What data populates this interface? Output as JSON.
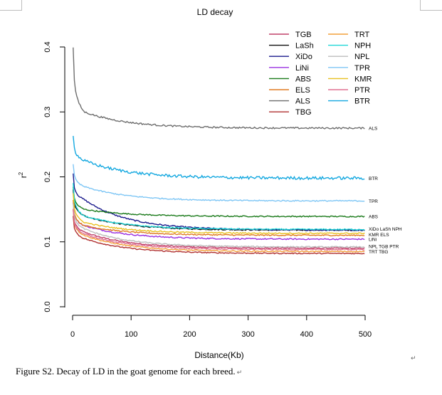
{
  "caption": {
    "text": "Figure S2. Decay of LD in the goat genome for each breed.",
    "mark": "↵"
  },
  "side_mark": "↵",
  "chart_data": {
    "type": "line",
    "title": "LD decay",
    "xlabel": "Distance(Kb)",
    "ylabel": "r²",
    "ylabel_base": "r",
    "ylabel_sup": "2",
    "xlim": [
      0,
      500
    ],
    "ylim": [
      0,
      0.4
    ],
    "xticks": [
      0,
      100,
      200,
      300,
      400,
      500
    ],
    "yticks": [
      0.0,
      0.1,
      0.2,
      0.3,
      0.4
    ],
    "xtick_labels": [
      "0",
      "100",
      "200",
      "300",
      "400",
      "500"
    ],
    "ytick_labels": [
      "0.0",
      "0.1",
      "0.2",
      "0.3",
      "0.4"
    ],
    "legend": {
      "placement": "top-right",
      "columns": [
        [
          "TGB",
          "LaSh",
          "XiDo",
          "LiNi",
          "ABS",
          "ELS",
          "ALS",
          "TBG"
        ],
        [
          "TRT",
          "NPH",
          "NPL",
          "TPR",
          "KMR",
          "PTR",
          "BTR"
        ]
      ]
    },
    "series": [
      {
        "name": "TGB",
        "color": "#c0406a",
        "start": 0.15,
        "knee": 0.115,
        "end": 0.09,
        "noise": 0.0009
      },
      {
        "name": "LaSh",
        "color": "#111111",
        "start": 0.18,
        "knee": 0.14,
        "end": 0.118,
        "noise": 0.0009
      },
      {
        "name": "XiDo",
        "color": "#1a1a8c",
        "start": 0.205,
        "knee": 0.165,
        "end": 0.118,
        "noise": 0.001
      },
      {
        "name": "LiNi",
        "color": "#9a30e0",
        "start": 0.16,
        "knee": 0.125,
        "end": 0.104,
        "noise": 0.001
      },
      {
        "name": "ABS",
        "color": "#1a7a1a",
        "start": 0.185,
        "knee": 0.15,
        "end": 0.139,
        "noise": 0.0009
      },
      {
        "name": "ELS",
        "color": "#e07a20",
        "start": 0.165,
        "knee": 0.125,
        "end": 0.11,
        "noise": 0.0009
      },
      {
        "name": "ALS",
        "color": "#6e6e6e",
        "start": 0.4,
        "knee": 0.3,
        "end": 0.275,
        "noise": 0.0012
      },
      {
        "name": "TBG",
        "color": "#b03030",
        "start": 0.14,
        "knee": 0.105,
        "end": 0.082,
        "noise": 0.0008
      },
      {
        "name": "TRT",
        "color": "#f2a03a",
        "start": 0.15,
        "knee": 0.11,
        "end": 0.085,
        "noise": 0.0008
      },
      {
        "name": "NPH",
        "color": "#20d8d8",
        "start": 0.19,
        "knee": 0.14,
        "end": 0.119,
        "noise": 0.0009
      },
      {
        "name": "NPL",
        "color": "#bcbcbc",
        "start": 0.16,
        "knee": 0.12,
        "end": 0.092,
        "noise": 0.0009
      },
      {
        "name": "TPR",
        "color": "#7ec6f5",
        "start": 0.22,
        "knee": 0.185,
        "end": 0.163,
        "noise": 0.0009
      },
      {
        "name": "KMR",
        "color": "#e8c020",
        "start": 0.175,
        "knee": 0.13,
        "end": 0.113,
        "noise": 0.0009
      },
      {
        "name": "PTR",
        "color": "#e07090",
        "start": 0.15,
        "knee": 0.112,
        "end": 0.088,
        "noise": 0.0009
      },
      {
        "name": "BTR",
        "color": "#14a8e0",
        "start": 0.265,
        "knee": 0.225,
        "end": 0.198,
        "noise": 0.0022
      }
    ],
    "end_labels": [
      {
        "text": "ALS",
        "y": 0.275
      },
      {
        "text": "BTR",
        "y": 0.198
      },
      {
        "text": "TPR",
        "y": 0.163
      },
      {
        "text": "ABS",
        "y": 0.139
      },
      {
        "text": "XiDo  LaSh  NPH",
        "y": 0.12
      },
      {
        "text": "KMR  ELS",
        "y": 0.111
      },
      {
        "text": "LiNi",
        "y": 0.104
      },
      {
        "text": "NPL  TGB  PTR",
        "y": 0.093
      },
      {
        "text": "TRT  TBG",
        "y": 0.085
      }
    ]
  }
}
